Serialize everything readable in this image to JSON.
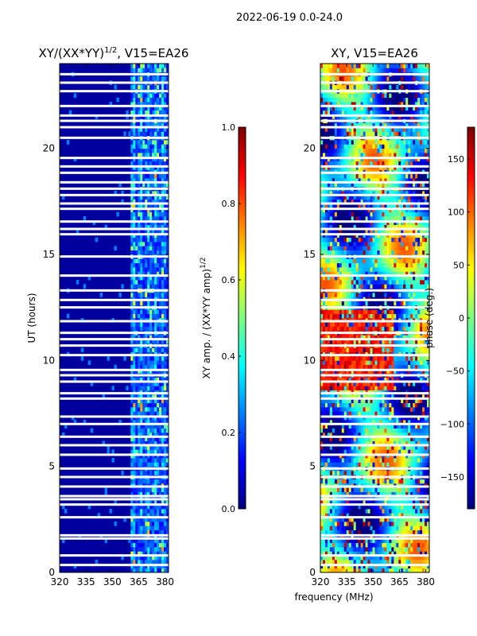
{
  "suptitle": "2022-06-19 0.0-24.0",
  "chart_data": [
    {
      "type": "heatmap",
      "title": "XY/(XX*YY)",
      "title_sup": "1/2",
      "title_suffix": ", V15=EA26",
      "xlabel": "",
      "ylabel": "UT (hours)",
      "xlim": [
        320,
        382
      ],
      "ylim": [
        0,
        24
      ],
      "xticks": [
        320,
        335,
        350,
        365,
        380
      ],
      "yticks": [
        0,
        5,
        10,
        15,
        20
      ],
      "colorbar": {
        "label": "XY amp. / (XX*YY amp)",
        "label_sup": "1/2",
        "range": [
          0.0,
          1.0
        ],
        "ticks": [
          "0.0",
          "0.2",
          "0.4",
          "0.6",
          "0.8",
          "1.0"
        ],
        "tick_values": [
          0.0,
          0.2,
          0.4,
          0.6,
          0.8,
          1.0
        ]
      },
      "colormap": "jet",
      "description_values": {
        "low_band_mhz": [
          320,
          360
        ],
        "low_band_value": 0.05,
        "high_band_mhz": [
          360,
          382
        ],
        "high_band_value_range": [
          0.1,
          0.5
        ]
      }
    },
    {
      "type": "heatmap",
      "title": "XY, V15=EA26",
      "xlabel": "frequency (MHz)",
      "ylabel": "",
      "xlim": [
        320,
        382
      ],
      "ylim": [
        0,
        24
      ],
      "xticks": [
        320,
        335,
        350,
        365,
        380
      ],
      "yticks": [
        0,
        5,
        10,
        15,
        20
      ],
      "colorbar": {
        "label": "phase (deg.)",
        "range": [
          -180,
          180
        ],
        "ticks": [
          "150",
          "100",
          "50",
          "0",
          "−50",
          "−100",
          "−150"
        ],
        "tick_values": [
          150,
          100,
          50,
          0,
          -50,
          -100,
          -150
        ]
      },
      "colormap": "jet",
      "description_values": {
        "value_range_deg": [
          -180,
          180
        ]
      }
    }
  ],
  "data_gaps_hours": [
    0.35,
    0.8,
    1.6,
    1.75,
    2.6,
    3.2,
    3.45,
    3.6,
    4.05,
    4.5,
    4.9,
    5.55,
    6.0,
    6.4,
    7.0,
    7.35,
    8.2,
    8.45,
    9.0,
    9.3,
    9.55,
    10.25,
    10.7,
    11.0,
    11.3,
    11.85,
    12.5,
    12.85,
    13.3,
    14.0,
    14.9,
    15.95,
    16.2,
    16.55,
    17.15,
    17.4,
    17.8,
    18.1,
    18.4,
    18.85,
    19.15,
    19.55,
    20.5,
    21.0,
    21.3,
    21.55,
    22.0,
    22.7,
    23.1,
    23.5
  ]
}
